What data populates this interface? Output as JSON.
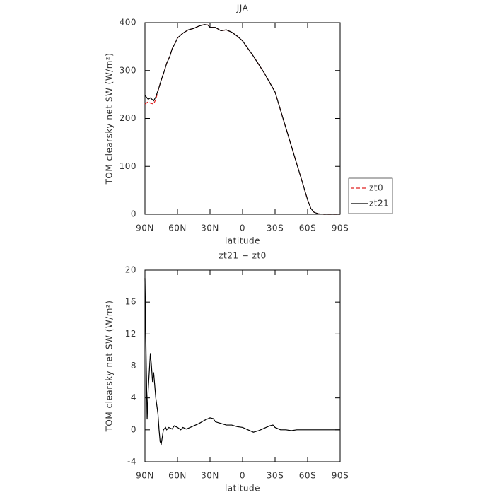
{
  "chart_data": [
    {
      "type": "line",
      "title": "JJA",
      "xlabel": "latitude",
      "ylabel": "TOM clearsky net SW (W/m²)",
      "x": [
        90,
        87,
        85,
        82,
        80,
        77,
        75,
        72,
        70,
        67,
        65,
        62,
        60,
        55,
        50,
        45,
        40,
        35,
        32,
        30,
        25,
        20,
        15,
        10,
        5,
        0,
        -10,
        -20,
        -30,
        -40,
        -50,
        -55,
        -60,
        -63,
        -66,
        -70,
        -75,
        -90
      ],
      "series": [
        {
          "name": "zt0",
          "color": "#e02020",
          "linestyle": "dashed",
          "values": [
            230,
            235,
            232,
            230,
            240,
            265,
            280,
            300,
            315,
            330,
            345,
            358,
            368,
            378,
            385,
            388,
            393,
            396,
            395,
            390,
            390,
            383,
            385,
            380,
            372,
            362,
            330,
            295,
            255,
            180,
            105,
            68,
            30,
            12,
            4,
            1,
            0,
            0
          ]
        },
        {
          "name": "zt21",
          "color": "#000000",
          "linestyle": "solid",
          "values": [
            248,
            240,
            243,
            237,
            245,
            265,
            280,
            300,
            315,
            330,
            345,
            358,
            368,
            378,
            385,
            388,
            393,
            396,
            395,
            390,
            390,
            383,
            385,
            380,
            372,
            362,
            330,
            295,
            255,
            180,
            105,
            68,
            30,
            12,
            4,
            1,
            0,
            0
          ]
        }
      ],
      "xlim": [
        90,
        -90
      ],
      "xticks": [
        {
          "value": 90,
          "label": "90N"
        },
        {
          "value": 60,
          "label": "60N"
        },
        {
          "value": 30,
          "label": "30N"
        },
        0,
        {
          "value": -30,
          "label": "30S"
        },
        {
          "value": -60,
          "label": "60S"
        },
        {
          "value": -90,
          "label": "90S"
        }
      ],
      "ylim": [
        0,
        400
      ],
      "yticks": [
        0,
        100,
        200,
        300,
        400
      ]
    },
    {
      "type": "line",
      "title": "zt21 − zt0",
      "xlabel": "latitude",
      "ylabel": "TOM clearsky net SW (W/m²)",
      "x": [
        90,
        89,
        88,
        87,
        85,
        84,
        83,
        82,
        80,
        78,
        77,
        76,
        75,
        73,
        71,
        70,
        68,
        65,
        63,
        60,
        57,
        55,
        52,
        50,
        45,
        40,
        35,
        30,
        27,
        25,
        20,
        15,
        10,
        5,
        0,
        -5,
        -10,
        -15,
        -20,
        -25,
        -28,
        -30,
        -35,
        -40,
        -45,
        -50,
        -60,
        -70,
        -90
      ],
      "series": [
        {
          "color": "#000000",
          "linestyle": "solid",
          "values": [
            19,
            10,
            1.3,
            5,
            9.6,
            8,
            6,
            7.2,
            4,
            2,
            0,
            -1.5,
            -1.8,
            0,
            0.3,
            0,
            0.3,
            0.1,
            0.5,
            0.3,
            0,
            0.3,
            0.1,
            0.2,
            0.5,
            0.8,
            1.2,
            1.5,
            1.4,
            1.0,
            0.8,
            0.6,
            0.6,
            0.4,
            0.3,
            0,
            -0.3,
            -0.1,
            0.2,
            0.5,
            0.6,
            0.3,
            0,
            0,
            -0.1,
            0,
            0,
            0,
            0
          ]
        }
      ],
      "xlim": [
        90,
        -90
      ],
      "xticks": [
        {
          "value": 90,
          "label": "90N"
        },
        {
          "value": 60,
          "label": "60N"
        },
        {
          "value": 30,
          "label": "30N"
        },
        0,
        {
          "value": -30,
          "label": "30S"
        },
        {
          "value": -60,
          "label": "60S"
        },
        {
          "value": -90,
          "label": "90S"
        }
      ],
      "ylim": [
        -4,
        20
      ],
      "yticks": [
        -4,
        0,
        4,
        8,
        12,
        16,
        20
      ]
    }
  ]
}
